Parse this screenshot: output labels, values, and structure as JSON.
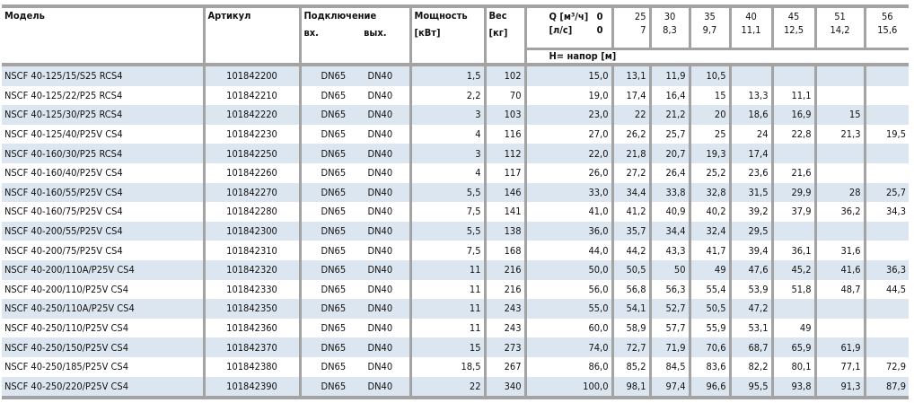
{
  "header": {
    "model": "Модель",
    "article": "Артикул",
    "connection": "Подключение",
    "conn_in": "вх.",
    "conn_out": "вых.",
    "power": "Мощность",
    "power_unit": "[кВт]",
    "weight": "Вес",
    "weight_unit": "[кг]",
    "q_m3h_label": "Q [м³/ч]",
    "q_ls_label": "[л/с]",
    "q_m3h": [
      "0",
      "25",
      "30",
      "35",
      "40",
      "45",
      "51",
      "56"
    ],
    "q_ls": [
      "0",
      "7",
      "8,3",
      "9,7",
      "11,1",
      "12,5",
      "14,2",
      "15,6"
    ],
    "head_label": "H= напор [м]"
  },
  "colors": {
    "stripe": "#dce6f0",
    "grid": "#a3a3a3"
  },
  "rows": [
    {
      "model": "NSCF 40-125/15/S25 RCS4",
      "article": "101842200",
      "in": "DN65",
      "out": "DN40",
      "power": "1,5",
      "weight": "102",
      "h": [
        "15,0",
        "13,1",
        "11,9",
        "10,5",
        "",
        "",
        "",
        ""
      ]
    },
    {
      "model": "NSCF 40-125/22/P25 RCS4",
      "article": "101842210",
      "in": "DN65",
      "out": "DN40",
      "power": "2,2",
      "weight": "70",
      "h": [
        "19,0",
        "17,4",
        "16,4",
        "15",
        "13,3",
        "11,1",
        "",
        ""
      ]
    },
    {
      "model": "NSCF 40-125/30/P25 RCS4",
      "article": "101842220",
      "in": "DN65",
      "out": "DN40",
      "power": "3",
      "weight": "103",
      "h": [
        "23,0",
        "22",
        "21,2",
        "20",
        "18,6",
        "16,9",
        "15",
        ""
      ]
    },
    {
      "model": "NSCF 40-125/40/P25V CS4",
      "article": "101842230",
      "in": "DN65",
      "out": "DN40",
      "power": "4",
      "weight": "116",
      "h": [
        "27,0",
        "26,2",
        "25,7",
        "25",
        "24",
        "22,8",
        "21,3",
        "19,5"
      ]
    },
    {
      "model": "NSCF 40-160/30/P25 RCS4",
      "article": "101842250",
      "in": "DN65",
      "out": "DN40",
      "power": "3",
      "weight": "112",
      "h": [
        "22,0",
        "21,8",
        "20,7",
        "19,3",
        "17,4",
        "",
        "",
        ""
      ]
    },
    {
      "model": "NSCF 40-160/40/P25V CS4",
      "article": "101842260",
      "in": "DN65",
      "out": "DN40",
      "power": "4",
      "weight": "117",
      "h": [
        "26,0",
        "27,2",
        "26,4",
        "25,2",
        "23,6",
        "21,6",
        "",
        ""
      ]
    },
    {
      "model": "NSCF 40-160/55/P25V CS4",
      "article": "101842270",
      "in": "DN65",
      "out": "DN40",
      "power": "5,5",
      "weight": "146",
      "h": [
        "33,0",
        "34,4",
        "33,8",
        "32,8",
        "31,5",
        "29,9",
        "28",
        "25,7"
      ]
    },
    {
      "model": "NSCF 40-160/75/P25V CS4",
      "article": "101842280",
      "in": "DN65",
      "out": "DN40",
      "power": "7,5",
      "weight": "141",
      "h": [
        "41,0",
        "41,2",
        "40,9",
        "40,2",
        "39,2",
        "37,9",
        "36,2",
        "34,3"
      ]
    },
    {
      "model": "NSCF 40-200/55/P25V CS4",
      "article": "101842300",
      "in": "DN65",
      "out": "DN40",
      "power": "5,5",
      "weight": "138",
      "h": [
        "36,0",
        "35,7",
        "34,4",
        "32,4",
        "29,5",
        "",
        "",
        ""
      ]
    },
    {
      "model": "NSCF 40-200/75/P25V CS4",
      "article": "101842310",
      "in": "DN65",
      "out": "DN40",
      "power": "7,5",
      "weight": "168",
      "h": [
        "44,0",
        "44,2",
        "43,3",
        "41,7",
        "39,4",
        "36,1",
        "31,6",
        ""
      ]
    },
    {
      "model": "NSCF 40-200/110A/P25V CS4",
      "article": "101842320",
      "in": "DN65",
      "out": "DN40",
      "power": "11",
      "weight": "216",
      "h": [
        "50,0",
        "50,5",
        "50",
        "49",
        "47,6",
        "45,2",
        "41,6",
        "36,3"
      ]
    },
    {
      "model": "NSCF 40-200/110/P25V CS4",
      "article": "101842330",
      "in": "DN65",
      "out": "DN40",
      "power": "11",
      "weight": "216",
      "h": [
        "56,0",
        "56,8",
        "56,3",
        "55,4",
        "53,9",
        "51,8",
        "48,7",
        "44,5"
      ]
    },
    {
      "model": "NSCF 40-250/110A/P25V CS4",
      "article": "101842350",
      "in": "DN65",
      "out": "DN40",
      "power": "11",
      "weight": "243",
      "h": [
        "55,0",
        "54,1",
        "52,7",
        "50,5",
        "47,2",
        "",
        "",
        ""
      ]
    },
    {
      "model": "NSCF 40-250/110/P25V CS4",
      "article": "101842360",
      "in": "DN65",
      "out": "DN40",
      "power": "11",
      "weight": "243",
      "h": [
        "60,0",
        "58,9",
        "57,7",
        "55,9",
        "53,1",
        "49",
        "",
        ""
      ]
    },
    {
      "model": "NSCF 40-250/150/P25V CS4",
      "article": "101842370",
      "in": "DN65",
      "out": "DN40",
      "power": "15",
      "weight": "273",
      "h": [
        "74,0",
        "72,7",
        "71,9",
        "70,6",
        "68,7",
        "65,9",
        "61,9",
        ""
      ]
    },
    {
      "model": "NSCF 40-250/185/P25V CS4",
      "article": "101842380",
      "in": "DN65",
      "out": "DN40",
      "power": "18,5",
      "weight": "267",
      "h": [
        "86,0",
        "85,2",
        "84,5",
        "83,6",
        "82,2",
        "80,1",
        "77,1",
        "72,9"
      ]
    },
    {
      "model": "NSCF 40-250/220/P25V CS4",
      "article": "101842390",
      "in": "DN65",
      "out": "DN40",
      "power": "22",
      "weight": "340",
      "h": [
        "100,0",
        "98,1",
        "97,4",
        "96,6",
        "95,5",
        "93,8",
        "91,3",
        "87,9"
      ]
    }
  ]
}
